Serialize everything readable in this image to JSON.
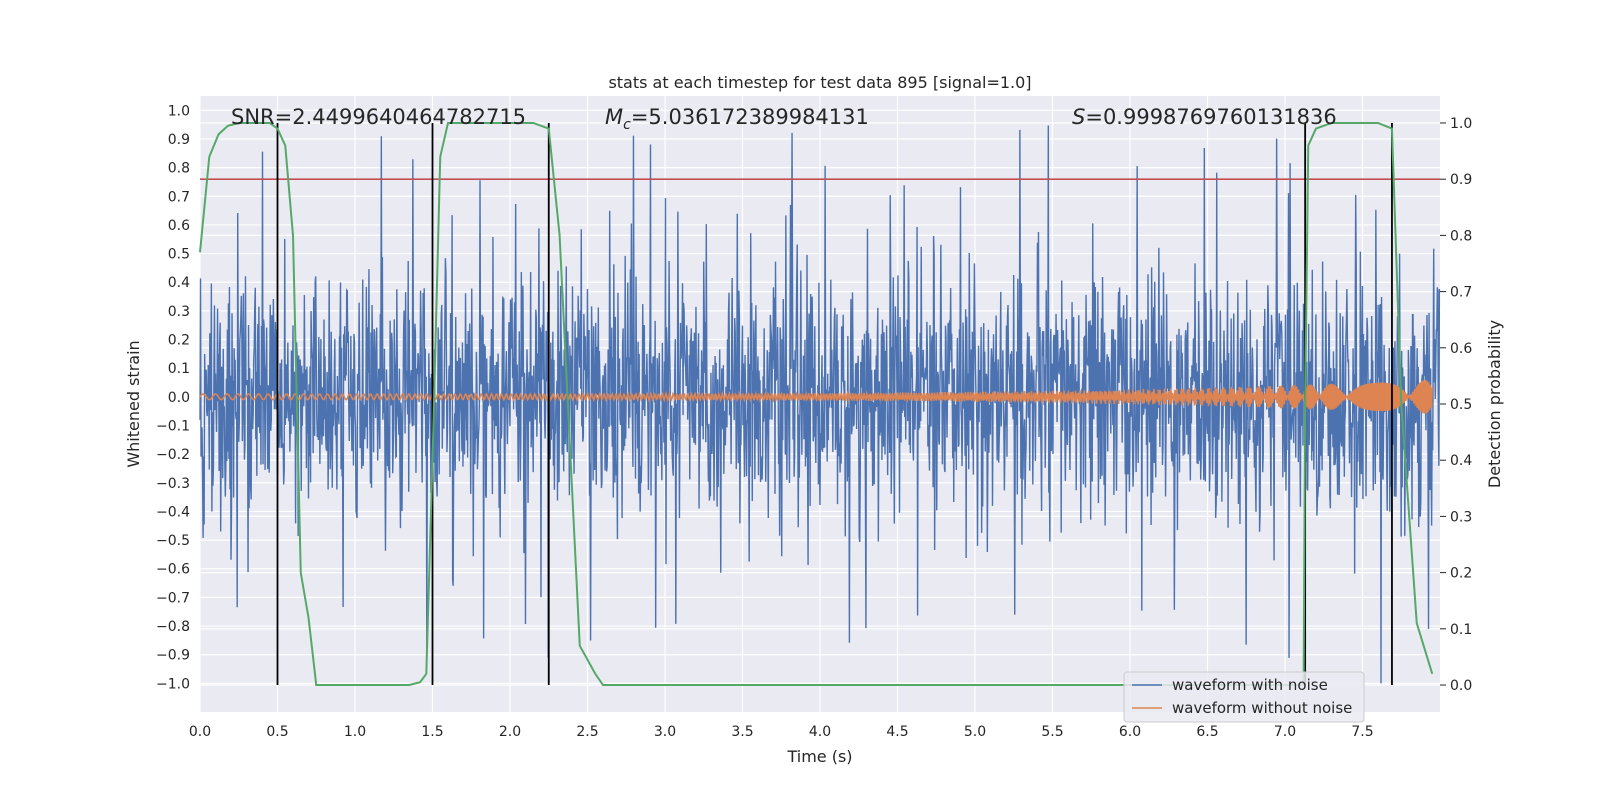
{
  "chart_data": {
    "type": "line",
    "title": "stats at each timestep for test data 895 [signal=1.0]",
    "xlabel": "Time (s)",
    "ylabel": "Whitened strain",
    "y2label": "Detection probability",
    "xlim": [
      0.0,
      8.0
    ],
    "ylim": [
      -1.1,
      1.05
    ],
    "y2lim": [
      -0.048,
      1.048
    ],
    "x_ticks": [
      "0.0",
      "0.5",
      "1.0",
      "1.5",
      "2.0",
      "2.5",
      "3.0",
      "3.5",
      "4.0",
      "4.5",
      "5.0",
      "5.5",
      "6.0",
      "6.5",
      "7.0",
      "7.5"
    ],
    "y_ticks": [
      "1.0",
      "0.9",
      "0.8",
      "0.7",
      "0.6",
      "0.5",
      "0.4",
      "0.3",
      "0.2",
      "0.1",
      "0.0",
      "−0.1",
      "−0.2",
      "−0.3",
      "−0.4",
      "−0.5",
      "−0.6",
      "−0.7",
      "−0.8",
      "−0.9",
      "−1.0"
    ],
    "y2_ticks": [
      "1.0",
      "0.9",
      "0.8",
      "0.7",
      "0.6",
      "0.5",
      "0.4",
      "0.3",
      "0.2",
      "0.1",
      "0.0"
    ],
    "grid": true,
    "annotations": {
      "snr": "SNR=2.4499640464782715",
      "mc_symbol": "M",
      "mc_sub": "c",
      "mc_value": "=5.036172389984131",
      "s_symbol": "S",
      "s_value": "=0.9998769760131836"
    },
    "threshold": {
      "y2": 0.9,
      "color": "#c44e52"
    },
    "vertical_lines_x": [
      0.5,
      1.5,
      2.25,
      7.13,
      7.69
    ],
    "series": [
      {
        "name": "waveform with noise",
        "color": "#4c72b0",
        "amplitude_typical": 0.5,
        "amplitude_max": 1.0
      },
      {
        "name": "waveform without noise",
        "color": "#dd8452",
        "amplitude_start": 0.01,
        "amplitude_end": 0.06
      },
      {
        "color": "#55a868",
        "axis": "y2",
        "x": [
          0.0,
          0.06,
          0.12,
          0.18,
          0.25,
          0.35,
          0.45,
          0.5,
          0.55,
          0.6,
          0.65,
          0.7,
          0.75,
          0.85,
          1.0,
          1.2,
          1.35,
          1.42,
          1.46,
          1.5,
          1.55,
          1.6,
          1.7,
          2.0,
          2.15,
          2.25,
          2.32,
          2.45,
          2.55,
          2.6,
          3.0,
          4.0,
          5.0,
          6.0,
          7.0,
          7.12,
          7.13,
          7.15,
          7.2,
          7.3,
          7.5,
          7.6,
          7.69,
          7.75,
          7.85,
          7.95
        ],
        "values": [
          0.77,
          0.94,
          0.98,
          0.995,
          1.0,
          1.0,
          1.0,
          0.99,
          0.96,
          0.8,
          0.2,
          0.12,
          0.0,
          0.0,
          0.0,
          0.0,
          0.0,
          0.005,
          0.02,
          0.4,
          0.94,
          1.0,
          1.0,
          1.0,
          1.0,
          0.99,
          0.8,
          0.07,
          0.02,
          0.0,
          0.0,
          0.0,
          0.0,
          0.0,
          0.0,
          0.0,
          0.5,
          0.96,
          0.99,
          1.0,
          1.0,
          1.0,
          0.99,
          0.5,
          0.11,
          0.02
        ]
      }
    ]
  }
}
